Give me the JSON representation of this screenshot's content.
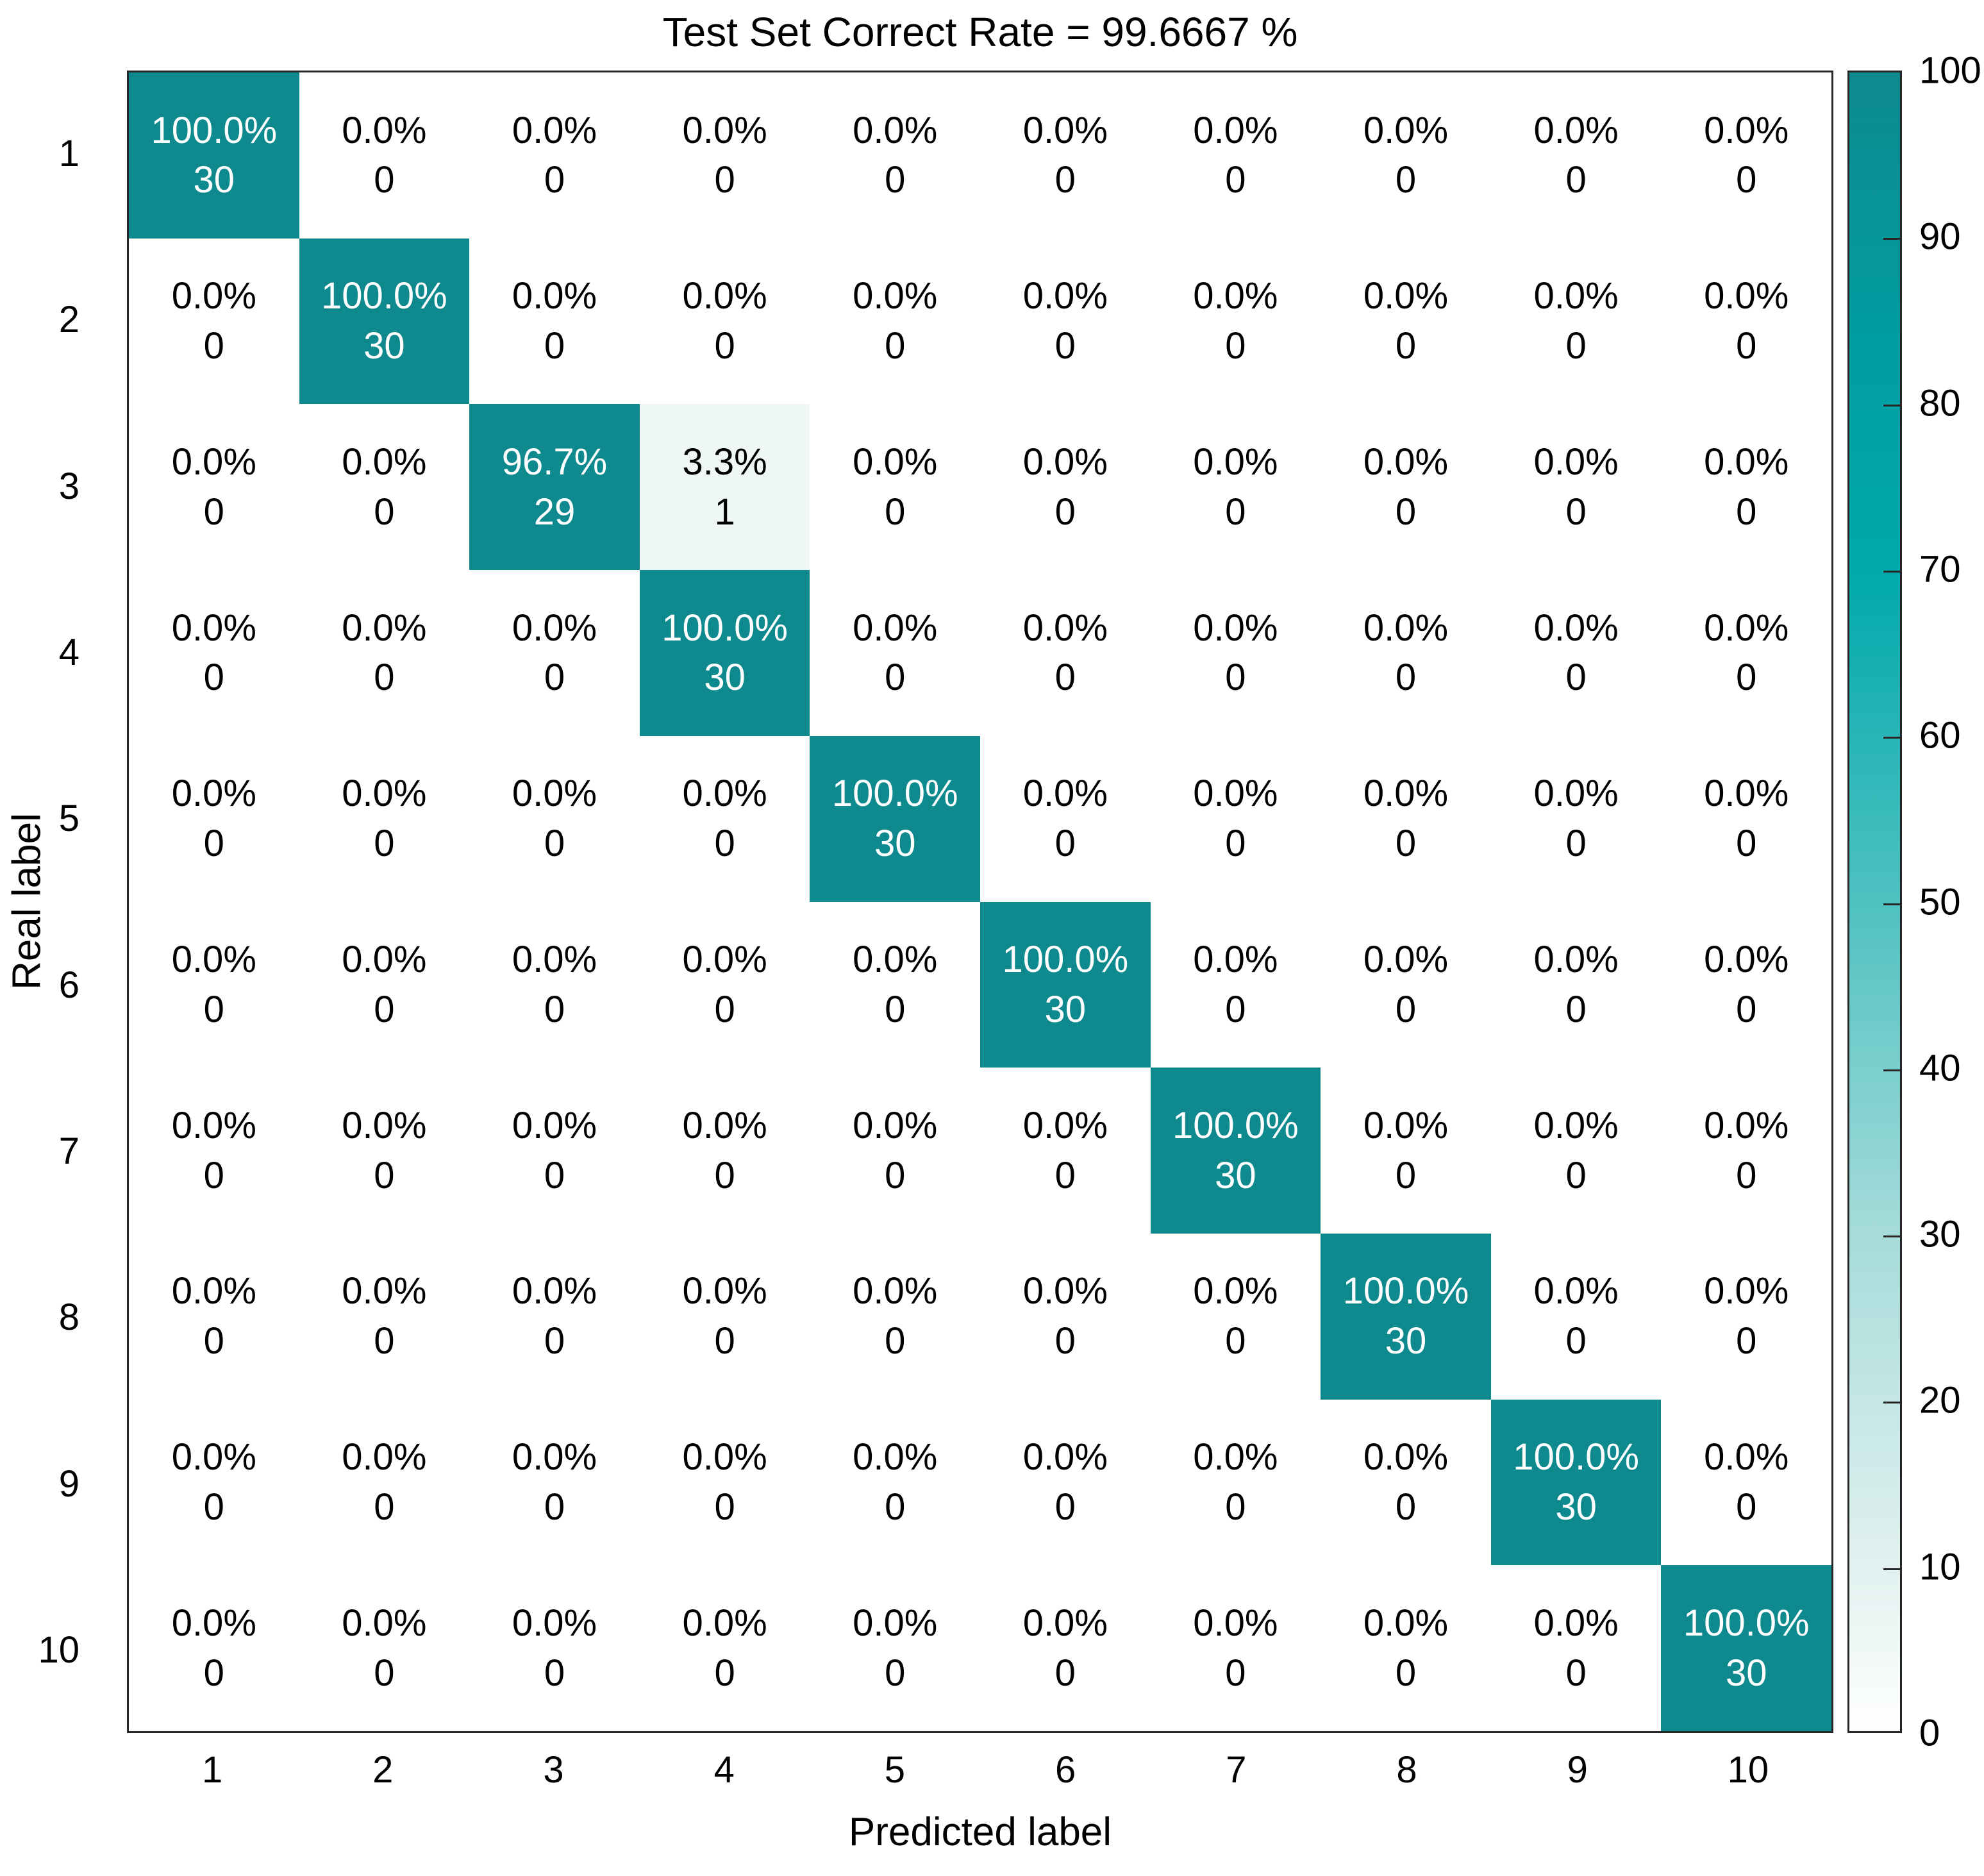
{
  "title": "Test Set Correct Rate = 99.6667 %",
  "colors": {
    "diagonal_cell": "#0e8a8e",
    "partial_cell": "#eef7f5",
    "zero_cell": "#ffffff",
    "text_on_teal": "#ffffff",
    "text_dark": "#000000",
    "axis_border": "#262626"
  },
  "chart_data": {
    "type": "heatmap",
    "title": "Test Set Correct Rate = 99.6667 %",
    "xlabel": "Predicted label",
    "ylabel": "Real label",
    "x_tick_labels": [
      "1",
      "2",
      "3",
      "4",
      "5",
      "6",
      "7",
      "8",
      "9",
      "10"
    ],
    "y_tick_labels": [
      "1",
      "2",
      "3",
      "4",
      "5",
      "6",
      "7",
      "8",
      "9",
      "10"
    ],
    "value_range": [
      0,
      100
    ],
    "grid": false,
    "cell_percent": [
      [
        100.0,
        0.0,
        0.0,
        0.0,
        0.0,
        0.0,
        0.0,
        0.0,
        0.0,
        0.0
      ],
      [
        0.0,
        100.0,
        0.0,
        0.0,
        0.0,
        0.0,
        0.0,
        0.0,
        0.0,
        0.0
      ],
      [
        0.0,
        0.0,
        96.7,
        3.3,
        0.0,
        0.0,
        0.0,
        0.0,
        0.0,
        0.0
      ],
      [
        0.0,
        0.0,
        0.0,
        100.0,
        0.0,
        0.0,
        0.0,
        0.0,
        0.0,
        0.0
      ],
      [
        0.0,
        0.0,
        0.0,
        0.0,
        100.0,
        0.0,
        0.0,
        0.0,
        0.0,
        0.0
      ],
      [
        0.0,
        0.0,
        0.0,
        0.0,
        0.0,
        100.0,
        0.0,
        0.0,
        0.0,
        0.0
      ],
      [
        0.0,
        0.0,
        0.0,
        0.0,
        0.0,
        0.0,
        100.0,
        0.0,
        0.0,
        0.0
      ],
      [
        0.0,
        0.0,
        0.0,
        0.0,
        0.0,
        0.0,
        0.0,
        100.0,
        0.0,
        0.0
      ],
      [
        0.0,
        0.0,
        0.0,
        0.0,
        0.0,
        0.0,
        0.0,
        0.0,
        100.0,
        0.0
      ],
      [
        0.0,
        0.0,
        0.0,
        0.0,
        0.0,
        0.0,
        0.0,
        0.0,
        0.0,
        100.0
      ]
    ],
    "cell_count": [
      [
        30,
        0,
        0,
        0,
        0,
        0,
        0,
        0,
        0,
        0
      ],
      [
        0,
        30,
        0,
        0,
        0,
        0,
        0,
        0,
        0,
        0
      ],
      [
        0,
        0,
        29,
        1,
        0,
        0,
        0,
        0,
        0,
        0
      ],
      [
        0,
        0,
        0,
        30,
        0,
        0,
        0,
        0,
        0,
        0
      ],
      [
        0,
        0,
        0,
        0,
        30,
        0,
        0,
        0,
        0,
        0
      ],
      [
        0,
        0,
        0,
        0,
        0,
        30,
        0,
        0,
        0,
        0
      ],
      [
        0,
        0,
        0,
        0,
        0,
        0,
        30,
        0,
        0,
        0
      ],
      [
        0,
        0,
        0,
        0,
        0,
        0,
        0,
        30,
        0,
        0
      ],
      [
        0,
        0,
        0,
        0,
        0,
        0,
        0,
        0,
        30,
        0
      ],
      [
        0,
        0,
        0,
        0,
        0,
        0,
        0,
        0,
        0,
        30
      ]
    ],
    "colorbar": {
      "position": "right",
      "min": 0,
      "max": 100,
      "tick_labels": [
        "0",
        "10",
        "20",
        "30",
        "40",
        "50",
        "60",
        "70",
        "80",
        "90",
        "100"
      ],
      "gradient_stops": [
        {
          "value": 0,
          "color": "#ffffff"
        },
        {
          "value": 10,
          "color": "#e1f1ef"
        },
        {
          "value": 30,
          "color": "#a6dcda"
        },
        {
          "value": 50,
          "color": "#4fc1c1"
        },
        {
          "value": 70,
          "color": "#00a9ac"
        },
        {
          "value": 85,
          "color": "#019ca0"
        },
        {
          "value": 100,
          "color": "#0e8a8e"
        }
      ]
    }
  }
}
